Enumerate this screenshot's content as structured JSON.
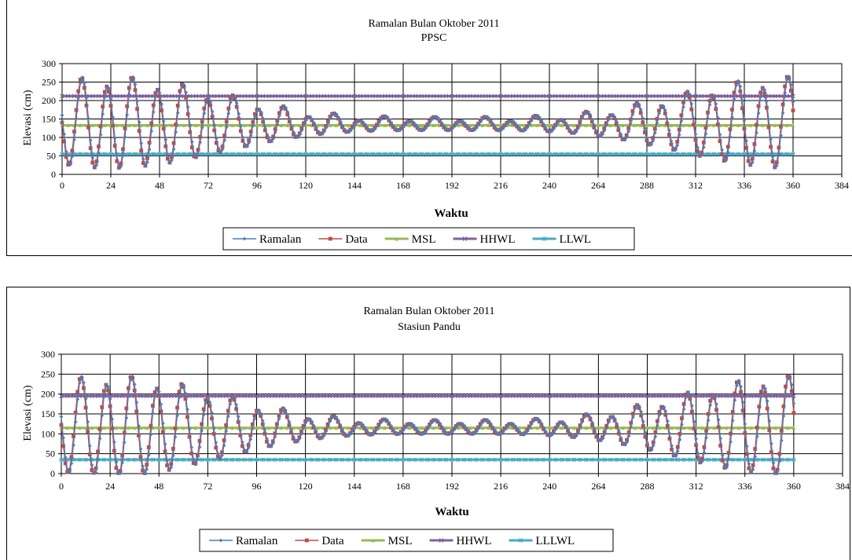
{
  "chart_data": [
    {
      "type": "line",
      "title": "Ramalan Bulan Oktober 2011",
      "subtitle": "PPSC",
      "xlabel": "Waktu",
      "ylabel": "Elevasi (cm)",
      "xlim": [
        0,
        384
      ],
      "ylim": [
        0,
        300
      ],
      "x_ticks": [
        "0",
        "24",
        "48",
        "72",
        "96",
        "120",
        "144",
        "168",
        "192",
        "216",
        "240",
        "264",
        "288",
        "312",
        "336",
        "360",
        "384"
      ],
      "y_ticks": [
        "0",
        "50",
        "100",
        "150",
        "200",
        "250",
        "300"
      ],
      "grid": true,
      "legend_position": "bottom",
      "tide": {
        "mean": 135,
        "semi_amplitude": 72,
        "diurnal_amplitude": 14,
        "spring_neap_period": 336,
        "peak_shift": 10,
        "max_at_360": 270,
        "min_at_315": 10,
        "neap_min_amplitude": 15,
        "x_step": 1,
        "x_end": 360
      },
      "series": [
        {
          "name": "Ramalan",
          "color": "#4a7ebb",
          "marker": "diamond",
          "kind": "tide-forecast"
        },
        {
          "name": "Data",
          "color": "#be4b48",
          "marker": "square",
          "kind": "tide-observed"
        },
        {
          "name": "MSL",
          "color": "#98b954",
          "marker": "triangle",
          "kind": "constant",
          "value": 133
        },
        {
          "name": "HHWL",
          "color": "#7d60a0",
          "marker": "x",
          "kind": "constant",
          "value": 212
        },
        {
          "name": "LLWL",
          "color": "#46aac5",
          "marker": "star",
          "kind": "constant",
          "value": 55
        }
      ]
    },
    {
      "type": "line",
      "title": "Ramalan Bulan Oktober 2011",
      "subtitle": "Stasiun Pandu",
      "xlabel": "Waktu",
      "ylabel": "Elevasi (cm)",
      "xlim": [
        0,
        384
      ],
      "ylim": [
        0,
        300
      ],
      "x_ticks": [
        "0",
        "24",
        "48",
        "72",
        "96",
        "120",
        "144",
        "168",
        "192",
        "216",
        "240",
        "264",
        "288",
        "312",
        "336",
        "360",
        "384"
      ],
      "y_ticks": [
        "0",
        "50",
        "100",
        "150",
        "200",
        "250",
        "300"
      ],
      "grid": true,
      "legend_position": "bottom",
      "tide": {
        "mean": 115,
        "semi_amplitude": 75,
        "diurnal_amplitude": 12,
        "spring_neap_period": 336,
        "peak_shift": 10,
        "max_at_360": 235,
        "min_at_315": 10,
        "neap_min_amplitude": 15,
        "x_step": 1,
        "x_end": 360
      },
      "series": [
        {
          "name": "Ramalan",
          "color": "#4a7ebb",
          "marker": "diamond",
          "kind": "tide-forecast"
        },
        {
          "name": "Data",
          "color": "#be4b48",
          "marker": "square",
          "kind": "tide-observed"
        },
        {
          "name": "MSL",
          "color": "#98b954",
          "marker": "triangle",
          "kind": "constant",
          "value": 115
        },
        {
          "name": "HHWL",
          "color": "#7d60a0",
          "marker": "x",
          "kind": "constant",
          "value": 195
        },
        {
          "name": "LLLWL",
          "color": "#46aac5",
          "marker": "star",
          "kind": "constant",
          "value": 35
        }
      ]
    }
  ]
}
